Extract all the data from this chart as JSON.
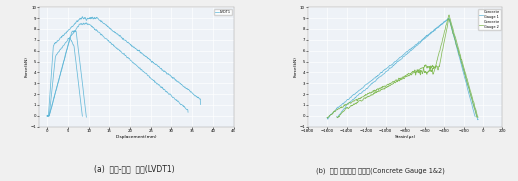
{
  "left_plot": {
    "title": "(a)  하중-변위  곡선(LVDT1)",
    "xlabel": "Displacement(mm)",
    "ylabel": "Force(kN)",
    "xlim": [
      -2,
      45
    ],
    "ylim": [
      -1,
      10
    ],
    "legend": [
      "LVDT1"
    ],
    "line_color": "#5ab4d6",
    "bg_color": "#eef2f7",
    "grid_color": "#ffffff"
  },
  "right_plot": {
    "title": "(b)  상단 콘크리트 변형률(Concrete Gauge 1&2)",
    "xlabel": "Strain(με)",
    "ylabel": "Force(kN)",
    "xlim": [
      -1800,
      200
    ],
    "ylim": [
      -1,
      10
    ],
    "legend": [
      "Concrete\nGauge 1",
      "Concrete\nGauge 2"
    ],
    "line_color1": "#5ab4d6",
    "line_color2": "#7ab648",
    "bg_color": "#eef2f7",
    "grid_color": "#ffffff"
  },
  "figure_bg": "#f0f0f0",
  "caption_left": "(a)  하중-변위  곡선(LVDT1)",
  "caption_right": "(b)  상단 콘크리트 변형률(Concrete Gauge 1&2)"
}
